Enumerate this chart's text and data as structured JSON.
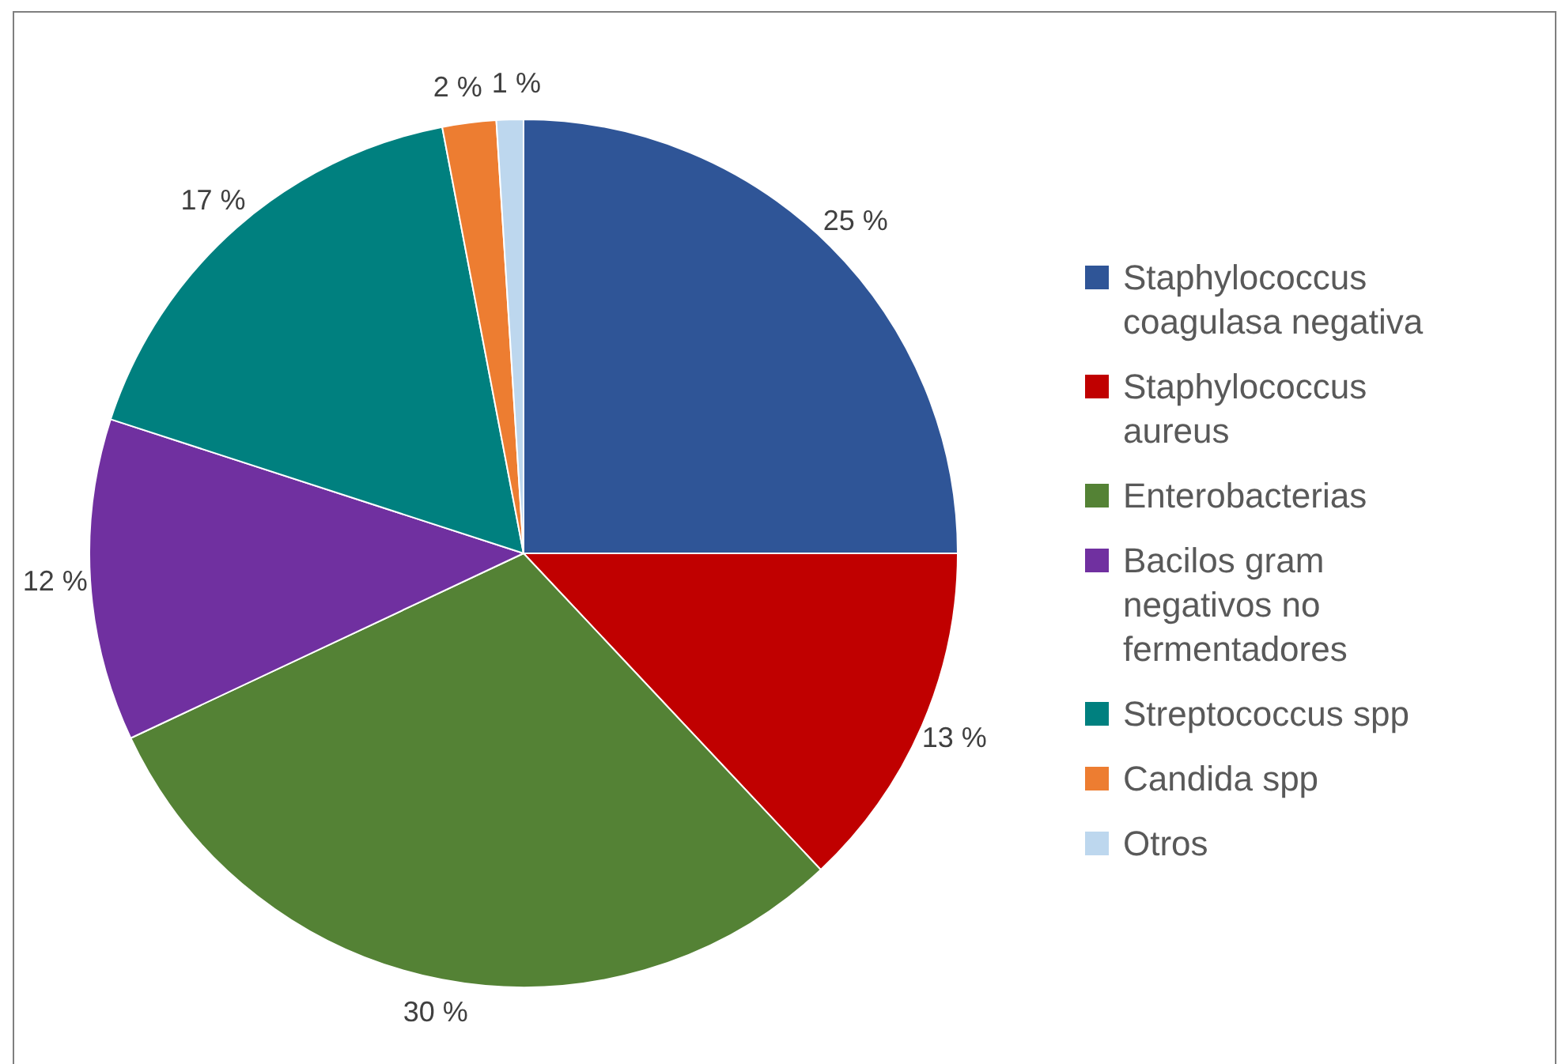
{
  "chart_data": {
    "type": "pie",
    "categories": [
      "Staphylococcus coagulasa negativa",
      "Staphylococcus aureus",
      "Enterobacterias",
      "Bacilos gram negativos no fermentadores",
      "Streptococcus spp",
      "Candida spp",
      "Otros"
    ],
    "values": [
      25,
      13,
      30,
      12,
      17,
      2,
      1
    ],
    "colors": [
      "#2f5597",
      "#c00000",
      "#548235",
      "#7030a0",
      "#00807f",
      "#ed7d31",
      "#bdd7ee"
    ],
    "value_labels": [
      "25 %",
      "13 %",
      "30 %",
      "12 %",
      "17 %",
      "2 %",
      "1 %"
    ],
    "legend": "right"
  }
}
